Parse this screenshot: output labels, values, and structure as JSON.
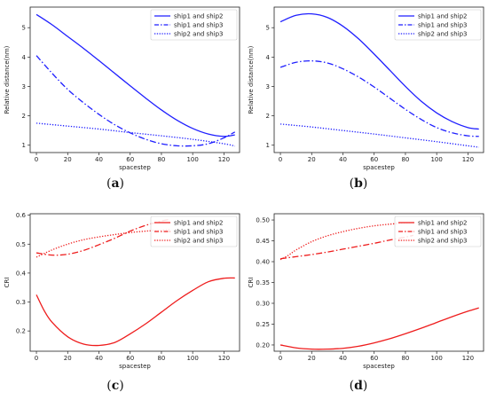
{
  "chart_data": [
    {
      "id": "a",
      "type": "line",
      "caption_letter": "a",
      "xlabel": "spacestep",
      "ylabel": "Relative distance(nm)",
      "xlim": [
        -4,
        130
      ],
      "ylim": [
        0.75,
        5.7
      ],
      "xticks": [
        0,
        20,
        40,
        60,
        80,
        100,
        120
      ],
      "yticks": [
        1,
        2,
        3,
        4,
        5
      ],
      "ytick_labels": [
        "1",
        "2",
        "3",
        "4",
        "5"
      ],
      "legend_position": "top-right",
      "series": [
        {
          "name": "ship1 and ship2",
          "color": "#1f1fff",
          "style": "solid",
          "x": [
            0,
            10,
            20,
            30,
            40,
            50,
            60,
            70,
            80,
            90,
            100,
            110,
            120,
            127
          ],
          "y": [
            5.45,
            5.1,
            4.7,
            4.3,
            3.88,
            3.45,
            3.02,
            2.6,
            2.2,
            1.85,
            1.57,
            1.38,
            1.3,
            1.35
          ]
        },
        {
          "name": "ship1 and ship3",
          "color": "#1f1fff",
          "style": "dashdot",
          "x": [
            0,
            10,
            20,
            30,
            40,
            50,
            60,
            70,
            80,
            90,
            100,
            110,
            120,
            127
          ],
          "y": [
            4.05,
            3.45,
            2.9,
            2.45,
            2.05,
            1.7,
            1.42,
            1.2,
            1.05,
            0.98,
            0.98,
            1.05,
            1.25,
            1.45
          ]
        },
        {
          "name": "ship2 and ship3",
          "color": "#1f1fff",
          "style": "dotted",
          "x": [
            0,
            20,
            40,
            60,
            80,
            100,
            120,
            127
          ],
          "y": [
            1.75,
            1.65,
            1.55,
            1.43,
            1.32,
            1.2,
            1.05,
            0.97
          ]
        }
      ]
    },
    {
      "id": "b",
      "type": "line",
      "caption_letter": "b",
      "xlabel": "spacestep",
      "ylabel": "Relative distance(nm)",
      "xlim": [
        -4,
        130
      ],
      "ylim": [
        0.75,
        5.7
      ],
      "xticks": [
        0,
        20,
        40,
        60,
        80,
        100,
        120
      ],
      "yticks": [
        1,
        2,
        3,
        4,
        5
      ],
      "ytick_labels": [
        "1",
        "2",
        "3",
        "4",
        "5"
      ],
      "legend_position": "top-right",
      "series": [
        {
          "name": "ship1 and ship2",
          "color": "#1f1fff",
          "style": "solid",
          "x": [
            0,
            10,
            20,
            30,
            40,
            50,
            60,
            70,
            80,
            90,
            100,
            110,
            120,
            127
          ],
          "y": [
            5.2,
            5.42,
            5.47,
            5.35,
            5.05,
            4.62,
            4.1,
            3.55,
            3.0,
            2.5,
            2.1,
            1.8,
            1.6,
            1.55
          ]
        },
        {
          "name": "ship1 and ship3",
          "color": "#1f1fff",
          "style": "dashdot",
          "x": [
            0,
            10,
            20,
            30,
            40,
            50,
            60,
            70,
            80,
            90,
            100,
            110,
            120,
            127
          ],
          "y": [
            3.65,
            3.82,
            3.87,
            3.8,
            3.6,
            3.32,
            2.98,
            2.6,
            2.22,
            1.88,
            1.6,
            1.42,
            1.32,
            1.3
          ]
        },
        {
          "name": "ship2 and ship3",
          "color": "#1f1fff",
          "style": "dotted",
          "x": [
            0,
            20,
            40,
            60,
            80,
            100,
            120,
            127
          ],
          "y": [
            1.72,
            1.62,
            1.5,
            1.38,
            1.25,
            1.12,
            0.98,
            0.93
          ]
        }
      ]
    },
    {
      "id": "c",
      "type": "line",
      "caption_letter": "c",
      "xlabel": "spacestep",
      "ylabel": "CRI",
      "xlim": [
        -4,
        130
      ],
      "ylim": [
        0.13,
        0.605
      ],
      "xticks": [
        0,
        20,
        40,
        60,
        80,
        100,
        120
      ],
      "yticks": [
        0.2,
        0.3,
        0.4,
        0.5,
        0.6
      ],
      "ytick_labels": [
        "0.2",
        "0.3",
        "0.4",
        "0.5",
        "0.6"
      ],
      "legend_position": "top-right",
      "series": [
        {
          "name": "ship1 and ship2",
          "color": "#ee1c1c",
          "style": "solid",
          "x": [
            0,
            5,
            10,
            20,
            30,
            40,
            50,
            60,
            70,
            80,
            90,
            100,
            110,
            120,
            127
          ],
          "y": [
            0.325,
            0.27,
            0.23,
            0.18,
            0.155,
            0.15,
            0.16,
            0.19,
            0.225,
            0.265,
            0.305,
            0.34,
            0.37,
            0.382,
            0.383
          ]
        },
        {
          "name": "ship1 and ship3",
          "color": "#ee1c1c",
          "style": "dashdot",
          "x": [
            0,
            10,
            20,
            30,
            40,
            50,
            60,
            70,
            80,
            85
          ],
          "y": [
            0.47,
            0.462,
            0.465,
            0.478,
            0.498,
            0.52,
            0.545,
            0.565,
            0.58,
            0.585
          ]
        },
        {
          "name": "ship2 and ship3",
          "color": "#ee1c1c",
          "style": "dotted",
          "x": [
            0,
            10,
            20,
            30,
            40,
            50,
            60,
            70,
            80,
            85
          ],
          "y": [
            0.455,
            0.48,
            0.5,
            0.515,
            0.525,
            0.533,
            0.54,
            0.545,
            0.548,
            0.55
          ]
        }
      ]
    },
    {
      "id": "d",
      "type": "line",
      "caption_letter": "d",
      "xlabel": "spacestep",
      "ylabel": "CRI",
      "xlim": [
        -4,
        130
      ],
      "ylim": [
        0.185,
        0.515
      ],
      "xticks": [
        0,
        20,
        40,
        60,
        80,
        100,
        120
      ],
      "yticks": [
        0.2,
        0.25,
        0.3,
        0.35,
        0.4,
        0.45,
        0.5
      ],
      "ytick_labels": [
        "0.20",
        "0.25",
        "0.30",
        "0.35",
        "0.40",
        "0.45",
        "0.50"
      ],
      "legend_position": "top-right",
      "series": [
        {
          "name": "ship1 and ship2",
          "color": "#ee1c1c",
          "style": "solid",
          "x": [
            0,
            10,
            20,
            30,
            40,
            50,
            60,
            70,
            80,
            90,
            100,
            110,
            120,
            127
          ],
          "y": [
            0.2,
            0.193,
            0.19,
            0.19,
            0.192,
            0.197,
            0.205,
            0.215,
            0.227,
            0.24,
            0.254,
            0.268,
            0.281,
            0.289
          ]
        },
        {
          "name": "ship1 and ship3",
          "color": "#ee1c1c",
          "style": "dashdot",
          "x": [
            0,
            10,
            20,
            30,
            40,
            50,
            60,
            70,
            80,
            85
          ],
          "y": [
            0.407,
            0.412,
            0.417,
            0.423,
            0.43,
            0.437,
            0.444,
            0.452,
            0.459,
            0.463
          ]
        },
        {
          "name": "ship2 and ship3",
          "color": "#ee1c1c",
          "style": "dotted",
          "x": [
            0,
            5,
            10,
            20,
            30,
            40,
            50,
            60,
            70,
            80,
            85
          ],
          "y": [
            0.405,
            0.415,
            0.428,
            0.448,
            0.462,
            0.472,
            0.48,
            0.486,
            0.49,
            0.493,
            0.494
          ]
        }
      ]
    }
  ]
}
